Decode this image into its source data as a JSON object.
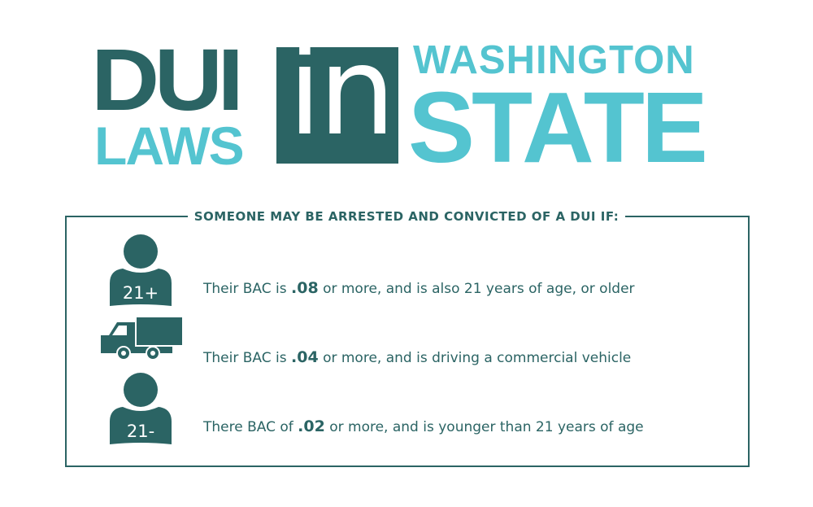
{
  "title": {
    "line1": "DUI",
    "line2": "LAWS",
    "middle": "in",
    "line3": "WASHINGTON",
    "line4": "STATE"
  },
  "heading": "SOMEONE MAY BE ARRESTED AND CONVICTED OF A DUI IF:",
  "rows": [
    {
      "icon": "person-21-plus-icon",
      "badge": "21+",
      "pre": "Their BAC is ",
      "bac": ".08",
      "post": " or more, and is also 21 years of age, or older"
    },
    {
      "icon": "truck-icon",
      "pre": "Their BAC is ",
      "bac": ".04",
      "post": " or more, and is driving a commercial vehicle"
    },
    {
      "icon": "person-21-minus-icon",
      "badge": "21-",
      "pre": "There BAC of ",
      "bac": ".02",
      "post": " or more, and is younger than 21 years of age"
    }
  ],
  "colors": {
    "dark_teal": "#2b6464",
    "light_teal": "#54c4d0"
  }
}
